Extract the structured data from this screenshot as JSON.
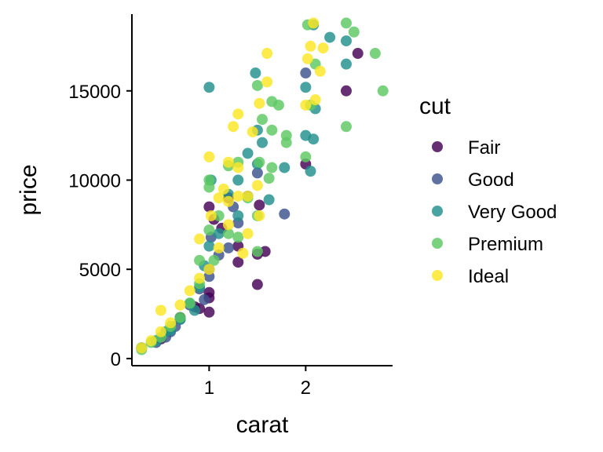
{
  "chart_data": {
    "type": "scatter",
    "xlabel": "carat",
    "ylabel": "price",
    "xlim": [
      0.2,
      2.9
    ],
    "ylim": [
      -400,
      19300
    ],
    "x_ticks": [
      1,
      2
    ],
    "y_ticks": [
      0,
      5000,
      10000,
      15000
    ],
    "x_tick_labels": [
      "1",
      "2"
    ],
    "y_tick_labels": [
      "0",
      "5000",
      "10000",
      "15000"
    ],
    "grid": false,
    "legend": {
      "title": "cut",
      "position": "right"
    },
    "series": [
      {
        "name": "Fair",
        "color": "#440154",
        "points": [
          [
            2.54,
            17100
          ],
          [
            2.42,
            15000
          ],
          [
            2.0,
            10900
          ],
          [
            1.5,
            5850
          ],
          [
            1.5,
            4150
          ],
          [
            1.0,
            3700
          ],
          [
            1.0,
            3400
          ],
          [
            1.3,
            6300
          ],
          [
            1.3,
            5400
          ],
          [
            1.13,
            7300
          ],
          [
            0.9,
            2800
          ],
          [
            0.7,
            2300
          ],
          [
            1.52,
            8600
          ],
          [
            1.05,
            7800
          ],
          [
            0.5,
            1100
          ],
          [
            1.58,
            6000
          ],
          [
            0.85,
            2900
          ],
          [
            1.0,
            8500
          ],
          [
            1.2,
            9000
          ],
          [
            1.0,
            2600
          ]
        ]
      },
      {
        "name": "Good",
        "color": "#3B528B",
        "points": [
          [
            2.0,
            16000
          ],
          [
            1.5,
            10400
          ],
          [
            1.78,
            8100
          ],
          [
            1.0,
            5000
          ],
          [
            1.0,
            4600
          ],
          [
            1.1,
            5800
          ],
          [
            1.2,
            6200
          ],
          [
            0.6,
            1500
          ],
          [
            0.55,
            1200
          ],
          [
            0.45,
            900
          ],
          [
            0.7,
            2200
          ],
          [
            1.25,
            8500
          ],
          [
            0.95,
            3300
          ],
          [
            1.02,
            6800
          ],
          [
            0.3,
            600
          ],
          [
            0.65,
            1800
          ],
          [
            1.4,
            9100
          ],
          [
            0.8,
            3000
          ],
          [
            1.3,
            7600
          ],
          [
            0.9,
            3900
          ]
        ]
      },
      {
        "name": "Very Good",
        "color": "#21908C",
        "points": [
          [
            2.42,
            17800
          ],
          [
            2.25,
            18000
          ],
          [
            2.08,
            18700
          ],
          [
            2.42,
            16500
          ],
          [
            2.0,
            12500
          ],
          [
            2.0,
            15200
          ],
          [
            1.48,
            16000
          ],
          [
            1.0,
            15200
          ],
          [
            1.78,
            10700
          ],
          [
            1.5,
            10900
          ],
          [
            2.05,
            10500
          ],
          [
            1.02,
            10000
          ],
          [
            1.5,
            12800
          ],
          [
            1.55,
            12100
          ],
          [
            1.4,
            11500
          ],
          [
            1.2,
            9200
          ],
          [
            1.3,
            8000
          ],
          [
            1.0,
            6300
          ],
          [
            0.9,
            4000
          ],
          [
            0.8,
            3100
          ],
          [
            0.7,
            2200
          ],
          [
            0.55,
            1500
          ],
          [
            0.45,
            1000
          ],
          [
            0.3,
            600
          ],
          [
            1.1,
            7000
          ],
          [
            0.95,
            5200
          ],
          [
            1.3,
            10000
          ],
          [
            2.08,
            12300
          ],
          [
            2.1,
            14000
          ],
          [
            1.62,
            8900
          ],
          [
            0.85,
            2700
          ],
          [
            0.6,
            1600
          ]
        ]
      },
      {
        "name": "Premium",
        "color": "#5DC863",
        "points": [
          [
            2.8,
            15000
          ],
          [
            2.72,
            17100
          ],
          [
            2.5,
            18300
          ],
          [
            2.42,
            18800
          ],
          [
            2.02,
            18700
          ],
          [
            2.42,
            13000
          ],
          [
            2.1,
            16500
          ],
          [
            1.65,
            14400
          ],
          [
            1.72,
            14200
          ],
          [
            1.5,
            15300
          ],
          [
            1.8,
            12100
          ],
          [
            1.65,
            12800
          ],
          [
            1.55,
            13400
          ],
          [
            2.0,
            11300
          ],
          [
            1.52,
            11000
          ],
          [
            1.3,
            11000
          ],
          [
            1.2,
            10800
          ],
          [
            1.0,
            10000
          ],
          [
            1.62,
            10100
          ],
          [
            1.0,
            9600
          ],
          [
            1.1,
            8000
          ],
          [
            1.2,
            7000
          ],
          [
            1.4,
            9000
          ],
          [
            1.3,
            6800
          ],
          [
            1.05,
            5500
          ],
          [
            0.9,
            4200
          ],
          [
            1.5,
            8000
          ],
          [
            1.5,
            6000
          ],
          [
            0.7,
            2300
          ],
          [
            0.8,
            3100
          ],
          [
            0.6,
            1800
          ],
          [
            0.5,
            1200
          ],
          [
            0.4,
            900
          ],
          [
            0.3,
            500
          ],
          [
            1.0,
            7200
          ],
          [
            0.9,
            5500
          ],
          [
            1.65,
            10700
          ],
          [
            1.8,
            12500
          ],
          [
            2.05,
            14200
          ]
        ]
      },
      {
        "name": "Ideal",
        "color": "#FDE725",
        "points": [
          [
            2.08,
            18800
          ],
          [
            2.05,
            17500
          ],
          [
            2.18,
            17400
          ],
          [
            2.02,
            16800
          ],
          [
            2.15,
            16100
          ],
          [
            1.6,
            17100
          ],
          [
            1.6,
            15500
          ],
          [
            2.0,
            14200
          ],
          [
            2.1,
            14500
          ],
          [
            1.52,
            14300
          ],
          [
            1.3,
            13700
          ],
          [
            1.25,
            13000
          ],
          [
            1.45,
            12700
          ],
          [
            1.0,
            11300
          ],
          [
            1.2,
            11000
          ],
          [
            1.3,
            10700
          ],
          [
            1.15,
            9500
          ],
          [
            1.1,
            9000
          ],
          [
            1.2,
            8800
          ],
          [
            1.3,
            9100
          ],
          [
            1.4,
            9100
          ],
          [
            1.5,
            9700
          ],
          [
            0.9,
            6700
          ],
          [
            1.4,
            7000
          ],
          [
            1.2,
            7500
          ],
          [
            1.1,
            6200
          ],
          [
            0.9,
            4500
          ],
          [
            0.8,
            3800
          ],
          [
            0.7,
            3000
          ],
          [
            0.6,
            2000
          ],
          [
            0.5,
            1500
          ],
          [
            0.5,
            2700
          ],
          [
            0.4,
            1000
          ],
          [
            0.3,
            600
          ],
          [
            1.0,
            5000
          ],
          [
            1.35,
            5900
          ],
          [
            1.02,
            8000
          ],
          [
            1.52,
            8000
          ]
        ]
      }
    ]
  }
}
